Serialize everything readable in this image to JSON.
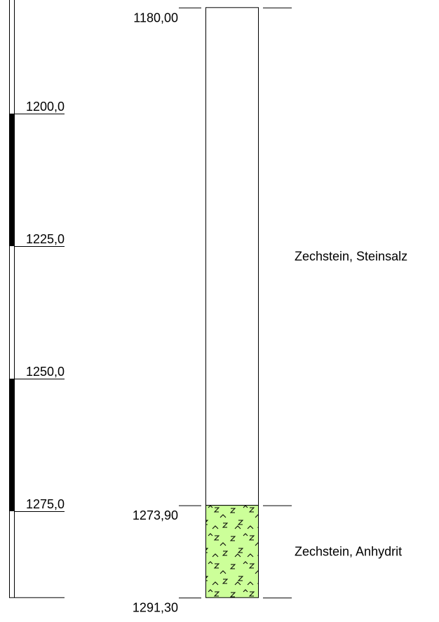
{
  "scale": {
    "ticks": [
      {
        "value": 1200,
        "label": "1200,0"
      },
      {
        "value": 1225,
        "label": "1225,0"
      },
      {
        "value": 1250,
        "label": "1250,0"
      },
      {
        "value": 1275,
        "label": "1275,0"
      }
    ]
  },
  "boundaries": [
    {
      "value": 1180,
      "label": "1180,00"
    },
    {
      "value": 1273.9,
      "label": "1273,90"
    },
    {
      "value": 1291.3,
      "label": "1291,30"
    }
  ],
  "layers": [
    {
      "name": "Zechstein, Steinsalz",
      "color": "#ffffff",
      "pattern": false
    },
    {
      "name": "Zechstein, Anhydrit",
      "color": "#ccff99",
      "pattern": true
    }
  ]
}
